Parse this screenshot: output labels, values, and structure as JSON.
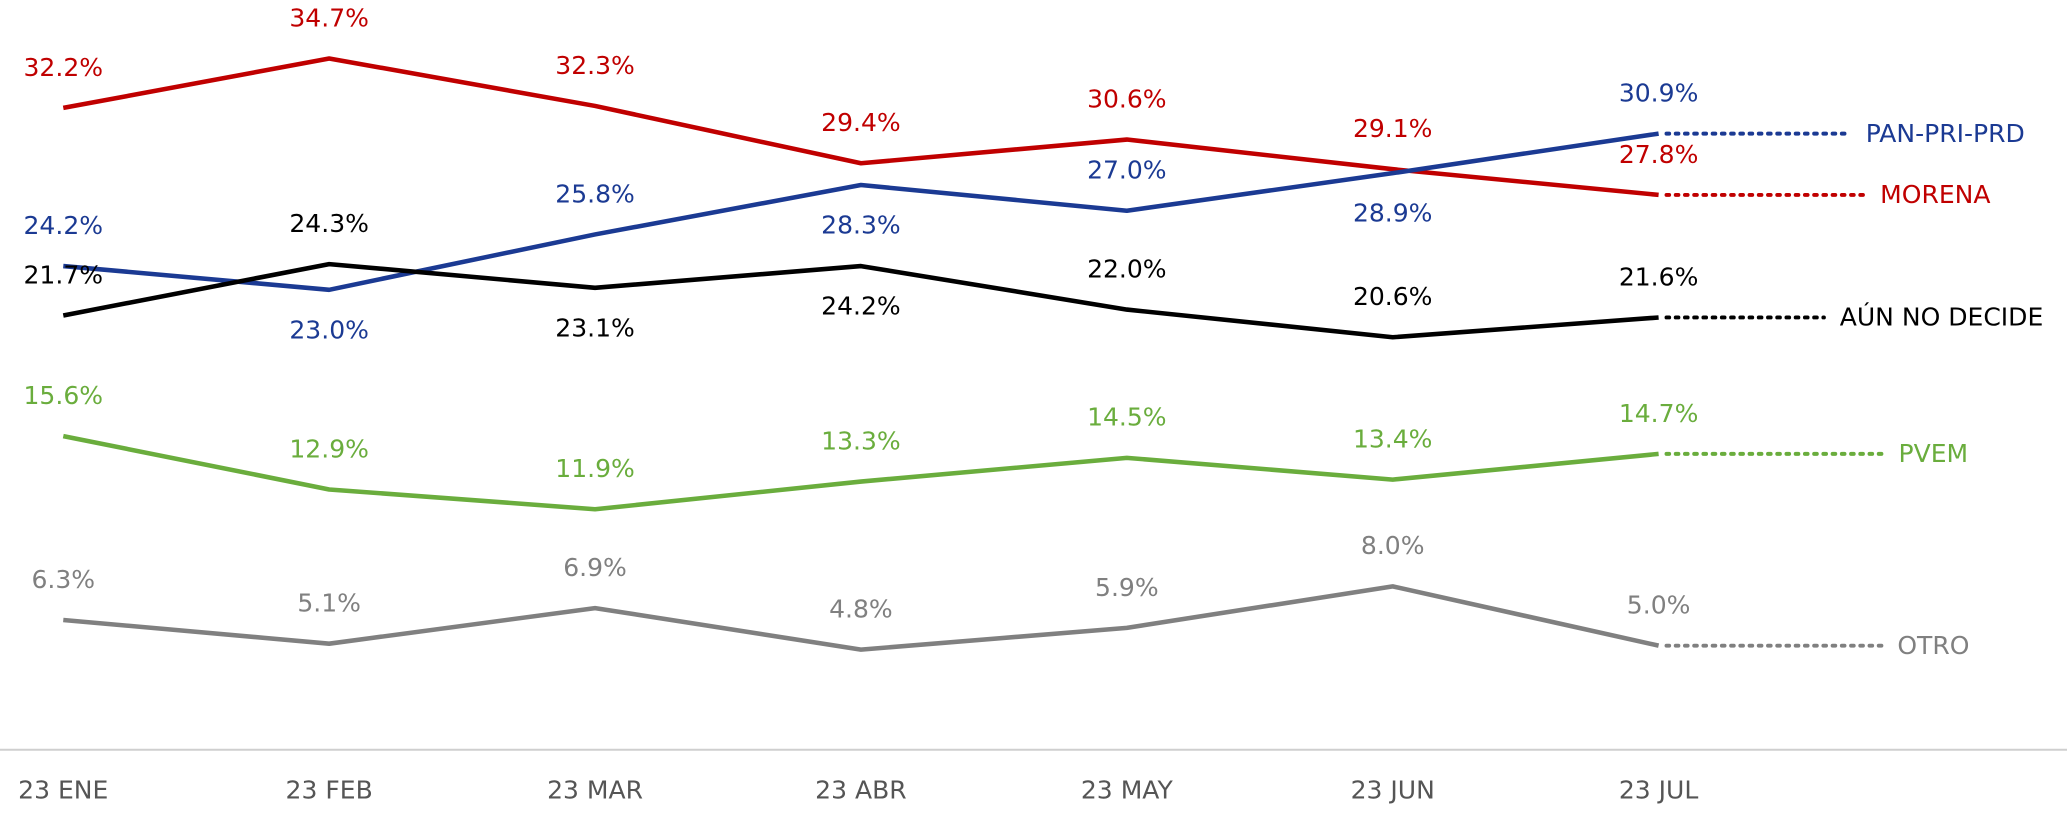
{
  "chart_data": {
    "type": "line",
    "categories": [
      "23 ENE",
      "23 FEB",
      "23 MAR",
      "23 ABR",
      "23 MAY",
      "23 JUN",
      "23 JUL"
    ],
    "ylim": [
      0,
      37
    ],
    "series": [
      {
        "name": "MORENA",
        "color": "#c00000",
        "values": [
          32.2,
          34.7,
          32.3,
          29.4,
          30.6,
          29.1,
          27.8
        ],
        "value_labels": [
          "32.2%",
          "34.7%",
          "32.3%",
          "29.4%",
          "30.6%",
          "29.1%",
          "27.8%"
        ]
      },
      {
        "name": "PAN-PRI-PRD",
        "color": "#1b3a93",
        "values": [
          24.2,
          23.0,
          25.8,
          28.3,
          27.0,
          28.9,
          30.9
        ],
        "value_labels": [
          "24.2%",
          "23.0%",
          "25.8%",
          "28.3%",
          "27.0%",
          "28.9%",
          "30.9%"
        ]
      },
      {
        "name": "AÚN NO DECIDE",
        "color": "#000000",
        "values": [
          21.7,
          24.3,
          23.1,
          24.2,
          22.0,
          20.6,
          21.6
        ],
        "value_labels": [
          "21.7%",
          "24.3%",
          "23.1%",
          "24.2%",
          "22.0%",
          "20.6%",
          "21.6%"
        ]
      },
      {
        "name": "PVEM",
        "color": "#6aad3d",
        "values": [
          15.6,
          12.9,
          11.9,
          13.3,
          14.5,
          13.4,
          14.7
        ],
        "value_labels": [
          "15.6%",
          "12.9%",
          "11.9%",
          "13.3%",
          "14.5%",
          "13.4%",
          "14.7%"
        ]
      },
      {
        "name": "OTRO",
        "color": "#808080",
        "values": [
          6.3,
          5.1,
          6.9,
          4.8,
          5.9,
          8.0,
          5.0
        ],
        "value_labels": [
          "6.3%",
          "5.1%",
          "6.9%",
          "4.8%",
          "5.9%",
          "8.0%",
          "5.0%"
        ]
      }
    ]
  }
}
